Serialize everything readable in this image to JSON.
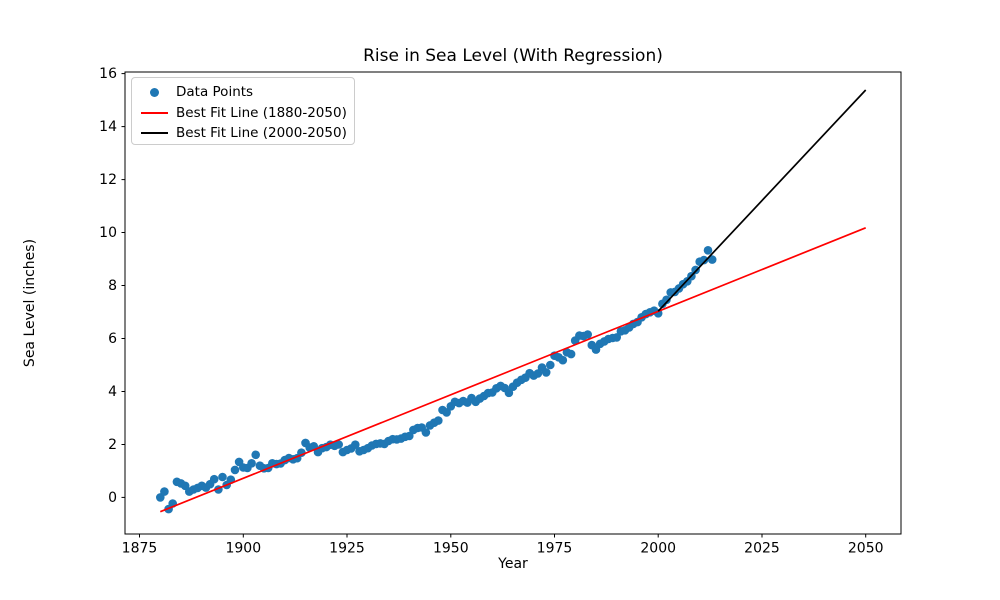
{
  "window": {
    "background": "#ffffff"
  },
  "chart_data": {
    "type": "scatter",
    "title": "Rise in Sea Level (With Regression)",
    "xlabel": "Year",
    "ylabel": "Sea Level (inches)",
    "xlim": [
      1871.5,
      2058.5
    ],
    "ylim": [
      -1.38,
      16.06
    ],
    "xticks": [
      1875,
      1900,
      1925,
      1950,
      1975,
      2000,
      2025,
      2050
    ],
    "yticks": [
      0,
      2,
      4,
      6,
      8,
      10,
      12,
      14,
      16
    ],
    "grid": false,
    "legend_position": "upper left",
    "legend": {
      "entries": [
        {
          "label": "Data Points",
          "type": "marker",
          "color": "#1f77b4"
        },
        {
          "label": "Best Fit Line (1880-2050)",
          "type": "line",
          "color": "#ff0000"
        },
        {
          "label": "Best Fit Line (2000-2050)",
          "type": "line",
          "color": "#000000"
        }
      ]
    },
    "series": [
      {
        "name": "Data Points",
        "type": "scatter",
        "color": "#1f77b4",
        "x": [
          1880,
          1881,
          1882,
          1883,
          1884,
          1885,
          1886,
          1887,
          1888,
          1889,
          1890,
          1891,
          1892,
          1893,
          1894,
          1895,
          1896,
          1897,
          1898,
          1899,
          1900,
          1901,
          1902,
          1903,
          1904,
          1905,
          1906,
          1907,
          1908,
          1909,
          1910,
          1911,
          1912,
          1913,
          1914,
          1915,
          1916,
          1917,
          1918,
          1919,
          1920,
          1921,
          1922,
          1923,
          1924,
          1925,
          1926,
          1927,
          1928,
          1929,
          1930,
          1931,
          1932,
          1933,
          1934,
          1935,
          1936,
          1937,
          1938,
          1939,
          1940,
          1941,
          1942,
          1943,
          1944,
          1945,
          1946,
          1947,
          1948,
          1949,
          1950,
          1951,
          1952,
          1953,
          1954,
          1955,
          1956,
          1957,
          1958,
          1959,
          1960,
          1961,
          1962,
          1963,
          1964,
          1965,
          1966,
          1967,
          1968,
          1969,
          1970,
          1971,
          1972,
          1973,
          1974,
          1975,
          1976,
          1977,
          1978,
          1979,
          1980,
          1981,
          1982,
          1983,
          1984,
          1985,
          1986,
          1987,
          1988,
          1989,
          1990,
          1991,
          1992,
          1993,
          1994,
          1995,
          1996,
          1997,
          1998,
          1999,
          2000,
          2001,
          2002,
          2003,
          2004,
          2005,
          2006,
          2007,
          2008,
          2009,
          2010,
          2011,
          2012,
          2013
        ],
        "y": [
          0.0,
          0.22,
          -0.44,
          -0.23,
          0.59,
          0.53,
          0.44,
          0.22,
          0.3,
          0.36,
          0.44,
          0.37,
          0.5,
          0.69,
          0.3,
          0.77,
          0.47,
          0.67,
          1.04,
          1.34,
          1.13,
          1.11,
          1.29,
          1.61,
          1.2,
          1.1,
          1.11,
          1.29,
          1.26,
          1.28,
          1.41,
          1.49,
          1.44,
          1.48,
          1.69,
          2.06,
          1.88,
          1.93,
          1.71,
          1.86,
          1.9,
          1.99,
          1.95,
          2.0,
          1.71,
          1.79,
          1.85,
          1.99,
          1.74,
          1.79,
          1.86,
          1.96,
          2.02,
          2.04,
          2.02,
          2.13,
          2.2,
          2.19,
          2.22,
          2.29,
          2.32,
          2.55,
          2.62,
          2.64,
          2.45,
          2.72,
          2.82,
          2.9,
          3.3,
          3.21,
          3.44,
          3.61,
          3.56,
          3.64,
          3.58,
          3.75,
          3.61,
          3.73,
          3.83,
          3.94,
          3.96,
          4.12,
          4.21,
          4.13,
          3.95,
          4.18,
          4.33,
          4.44,
          4.52,
          4.69,
          4.6,
          4.68,
          4.9,
          4.72,
          5.0,
          5.35,
          5.29,
          5.18,
          5.48,
          5.41,
          5.92,
          6.11,
          6.09,
          6.15,
          5.75,
          5.58,
          5.8,
          5.89,
          5.98,
          6.02,
          6.04,
          6.27,
          6.31,
          6.42,
          6.55,
          6.62,
          6.8,
          6.92,
          6.99,
          7.05,
          6.95,
          7.31,
          7.46,
          7.74,
          7.76,
          7.89,
          8.05,
          8.16,
          8.35,
          8.59,
          8.9,
          8.96,
          9.33,
          8.98
        ]
      },
      {
        "name": "Best Fit Line (1880-2050)",
        "type": "line",
        "color": "#ff0000",
        "x": [
          1880,
          2050
        ],
        "y": [
          -0.54,
          10.18
        ]
      },
      {
        "name": "Best Fit Line (2000-2050)",
        "type": "line",
        "color": "#000000",
        "x": [
          2000,
          2050
        ],
        "y": [
          7.03,
          15.38
        ]
      }
    ]
  }
}
